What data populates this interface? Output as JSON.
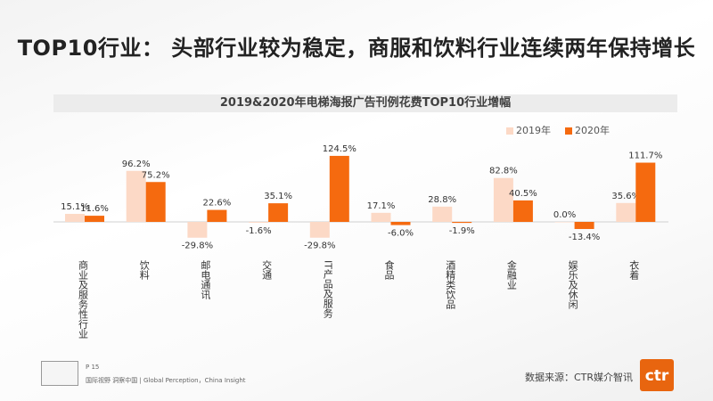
{
  "title": "TOP10行业： 头部行业较为稳定，商服和饮料行业连续两年保持增长",
  "footer": {
    "page": "P 15",
    "slogan": "国际视野 洞察中国 | Global Perception，China Insight",
    "source": "数据来源：CTR媒介智讯",
    "logo": "ctr"
  },
  "colors": {
    "s2019": "#fcd9c6",
    "s2020": "#f56a0f"
  },
  "chart_data": {
    "type": "bar",
    "title": "2019&2020年电梯海报广告刊例花费TOP10行业增幅",
    "categories": [
      "商业及服务性行业",
      "饮料",
      "邮电通讯",
      "交通",
      "IT产品及服务",
      "食品",
      "酒精类饮品",
      "金融业",
      "娱乐及休闲",
      "衣着"
    ],
    "series": [
      {
        "name": "2019年",
        "values": [
          15.1,
          96.2,
          -29.8,
          -1.6,
          -29.8,
          17.1,
          28.8,
          82.8,
          0.0,
          35.6
        ],
        "labels": [
          "15.1%",
          "96.2%",
          "-29.8%",
          "-1.6%",
          "-29.8%",
          "17.1%",
          "28.8%",
          "82.8%",
          "0.0%",
          "35.6%"
        ]
      },
      {
        "name": "2020年",
        "values": [
          11.6,
          75.2,
          22.6,
          35.1,
          124.5,
          -6.0,
          -1.9,
          40.5,
          -13.4,
          111.7
        ],
        "labels": [
          "11.6%",
          "75.2%",
          "22.6%",
          "35.1%",
          "124.5%",
          "-6.0%",
          "-1.9%",
          "40.5%",
          "-13.4%",
          "111.7%"
        ]
      }
    ],
    "legend": "top-right"
  }
}
